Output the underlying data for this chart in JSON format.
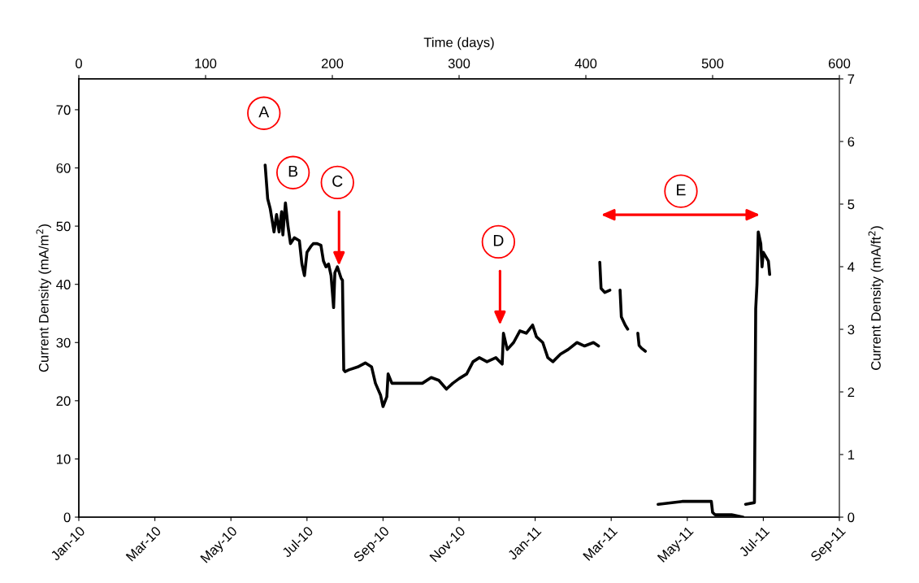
{
  "chart_data": {
    "type": "line",
    "x2label": "Time (days)",
    "ylabel": "Current Density (mA/m$^{2}$)",
    "y2label": "Current Density (mA/ft$^{2}$)",
    "xlim": [
      "2010-01-15",
      "2011-09-07"
    ],
    "xticks": [
      {
        "value": "2010-01-15",
        "label": "Jan-10"
      },
      {
        "value": "2010-03-16",
        "label": "Mar-10"
      },
      {
        "value": "2010-05-15",
        "label": "May-10"
      },
      {
        "value": "2010-07-14",
        "label": "Jul-10"
      },
      {
        "value": "2010-09-12",
        "label": "Sep-10"
      },
      {
        "value": "2010-11-11",
        "label": "Nov-10"
      },
      {
        "value": "2011-01-10",
        "label": "Jan-11"
      },
      {
        "value": "2011-03-11",
        "label": "Mar-11"
      },
      {
        "value": "2011-05-10",
        "label": "May-11"
      },
      {
        "value": "2011-07-09",
        "label": "Jul-11"
      },
      {
        "value": "2011-09-07",
        "label": "Sep-11"
      }
    ],
    "x2lim": [
      0,
      600
    ],
    "x2ticks": [
      0,
      100,
      200,
      300,
      400,
      500,
      600
    ],
    "ylim": [
      0,
      75.3
    ],
    "yticks": [
      0,
      10,
      20,
      30,
      40,
      50,
      60,
      70
    ],
    "y2lim": [
      0,
      7
    ],
    "y2ticks": [
      0,
      1,
      2,
      3,
      4,
      5,
      6,
      7
    ],
    "grid": false,
    "line_style": "solid",
    "marker": "none",
    "series": [
      {
        "color": "#000000",
        "x": [
          "2010-06-11",
          "2010-06-13",
          "2010-06-15",
          "2010-06-18",
          "2010-06-20",
          "2010-06-22",
          "2010-06-24",
          "2010-06-25",
          "2010-06-27",
          "2010-06-29",
          "2010-07-01",
          "2010-07-04",
          "2010-07-08",
          "2010-07-10",
          "2010-07-12",
          "2010-07-14",
          "2010-07-17",
          "2010-07-19",
          "2010-07-22",
          "2010-07-25",
          "2010-07-27",
          "2010-07-29",
          "2010-07-31",
          "2010-08-02",
          "2010-08-04",
          "2010-08-05",
          "2010-08-07",
          "2010-08-10",
          "2010-08-11",
          "2010-08-12",
          "2010-08-13",
          "2010-08-16",
          "2010-08-23",
          "2010-08-29",
          "2010-09-03",
          "2010-09-06",
          "2010-09-10",
          "2010-09-12",
          "2010-09-15",
          "2010-09-16",
          "2010-09-19",
          "2010-09-24",
          "2010-09-30",
          "2010-10-07",
          "2010-10-13",
          "2010-10-20",
          "2010-10-26",
          "2010-11-01",
          "2010-11-06",
          "2010-11-11",
          "2010-11-17",
          "2010-11-22",
          "2010-11-27",
          "2010-12-03",
          "2010-12-10",
          "2010-12-15",
          "2010-12-16",
          "2010-12-19",
          "2010-12-24",
          "2010-12-29",
          "2011-01-03",
          "2011-01-08",
          "2011-01-11",
          "2011-01-16",
          "2011-01-20",
          "2011-01-24",
          "2011-01-30",
          "2011-02-05",
          "2011-02-12",
          "2011-02-18",
          "2011-02-25",
          "2011-03-01"
        ],
        "values": [
          60.5,
          54.7,
          53,
          49,
          52,
          49,
          52.5,
          48.5,
          54,
          50,
          47,
          48,
          47.5,
          43.5,
          41.5,
          45.5,
          46.5,
          47,
          47,
          46.7,
          44,
          43,
          43.5,
          41.5,
          36,
          42,
          43,
          41,
          40.7,
          25.3,
          25,
          25.3,
          25.8,
          26.5,
          25.8,
          23,
          21,
          19,
          20.7,
          24.6,
          23,
          23,
          23,
          23,
          23,
          24,
          23.5,
          22,
          23,
          23.8,
          24.6,
          26.7,
          27.4,
          26.7,
          27.4,
          26.3,
          31.6,
          28.8,
          30,
          32,
          31.6,
          33,
          31,
          30,
          27.4,
          26.7,
          28,
          28.8,
          30,
          29.4,
          30,
          29.4
        ]
      },
      {
        "color": "#000000",
        "x": [
          "2011-03-02",
          "2011-03-03",
          "2011-03-06",
          "2011-03-10"
        ],
        "values": [
          43.8,
          39.3,
          38.6,
          39
        ]
      },
      {
        "color": "#000000",
        "x": [
          "2011-03-18",
          "2011-03-19",
          "2011-03-22",
          "2011-03-24"
        ],
        "values": [
          39,
          34.4,
          33,
          32.3
        ]
      },
      {
        "color": "#000000",
        "x": [
          "2011-04-01",
          "2011-04-02",
          "2011-04-04",
          "2011-04-07"
        ],
        "values": [
          31.6,
          29.5,
          29,
          28.5
        ]
      },
      {
        "color": "#000000",
        "x": [
          "2011-04-17",
          "2011-05-06",
          "2011-05-29",
          "2011-05-30",
          "2011-06-01",
          "2011-06-14",
          "2011-06-23"
        ],
        "values": [
          2.2,
          2.7,
          2.7,
          0.8,
          0.4,
          0.4,
          0
        ]
      },
      {
        "color": "#000000",
        "x": [
          "2011-06-25",
          "2011-07-02",
          "2011-07-03",
          "2011-07-04",
          "2011-07-05",
          "2011-07-07",
          "2011-07-08",
          "2011-07-09",
          "2011-07-13",
          "2011-07-14"
        ],
        "values": [
          2.2,
          2.5,
          35.8,
          40,
          49,
          47,
          43,
          45.5,
          44,
          41.7
        ]
      }
    ],
    "annotations": [
      {
        "text": "A",
        "x": "2010-06-10",
        "y": 69.4
      },
      {
        "text": "B",
        "x": "2010-07-03",
        "y": 59.2
      },
      {
        "text": "C",
        "x": "2010-08-07",
        "y": 57.5
      },
      {
        "text": "D",
        "x": "2010-12-12",
        "y": 47.3
      },
      {
        "text": "E",
        "x": "2011-05-05",
        "y": 56
      }
    ]
  }
}
